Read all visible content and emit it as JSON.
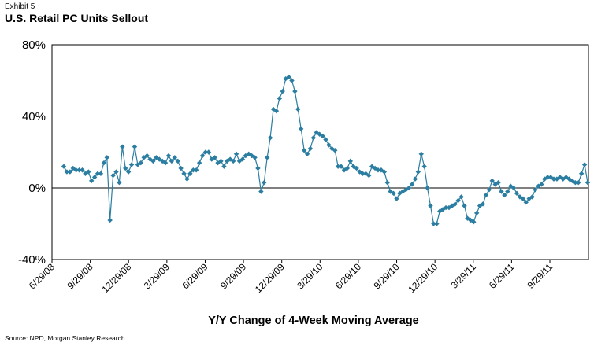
{
  "exhibit_label": "Exhibit 5",
  "title": "U.S. Retail PC Units Sellout",
  "source": "Source: NPD, Morgan Stanley Research",
  "chart_data": {
    "type": "line",
    "xlabel": "Y/Y Change of 4-Week Moving Average",
    "ylabel": "",
    "ylim": [
      -40,
      80
    ],
    "ytick_values": [
      -40,
      0,
      40,
      80
    ],
    "ytick_labels": [
      "-40%",
      "0%",
      "40%",
      "80%"
    ],
    "xtick_labels": [
      "6/29/08",
      "9/29/08",
      "12/29/08",
      "3/29/09",
      "6/29/09",
      "9/29/09",
      "12/29/09",
      "3/29/10",
      "6/29/10",
      "9/29/10",
      "12/29/10",
      "3/29/11",
      "6/29/11",
      "9/29/11"
    ],
    "grid": false,
    "legend": "none",
    "line_color": "#2b7ea1",
    "series": [
      {
        "values": [
          12,
          9,
          9,
          11,
          10,
          10,
          10,
          8,
          9,
          4,
          6,
          8,
          8,
          14,
          17,
          -18,
          7,
          9,
          3,
          23,
          11,
          9,
          13,
          23,
          13,
          14,
          17,
          18,
          16,
          15,
          17,
          16,
          15,
          14,
          18,
          15,
          17,
          15,
          11,
          8,
          5,
          8,
          10,
          10,
          14,
          18,
          20,
          20,
          16,
          17,
          14,
          15,
          12,
          15,
          16,
          15,
          19,
          15,
          16,
          18,
          19,
          18,
          17,
          11,
          -2,
          3,
          17,
          28,
          44,
          43,
          50,
          54,
          61,
          62,
          60,
          54,
          44,
          33,
          21,
          19,
          22,
          28,
          31,
          30,
          29,
          27,
          24,
          22,
          21,
          12,
          12,
          10,
          11,
          15,
          12,
          11,
          9,
          8,
          8,
          7,
          12,
          11,
          10,
          10,
          9,
          3,
          -2,
          -3,
          -6,
          -3,
          -2,
          -1,
          0,
          2,
          5,
          9,
          19,
          12,
          0,
          -10,
          -20,
          -20,
          -13,
          -12,
          -11,
          -11,
          -10,
          -9,
          -7,
          -5,
          -10,
          -17,
          -18,
          -19,
          -14,
          -10,
          -9,
          -4,
          -1,
          4,
          2,
          3,
          -2,
          -4,
          -2,
          1,
          0,
          -3,
          -5,
          -6,
          -8,
          -6,
          -5,
          -1,
          1,
          2,
          5,
          6,
          6,
          5,
          5,
          6,
          5,
          6,
          5,
          4,
          3,
          3,
          8,
          13,
          3
        ]
      }
    ]
  }
}
